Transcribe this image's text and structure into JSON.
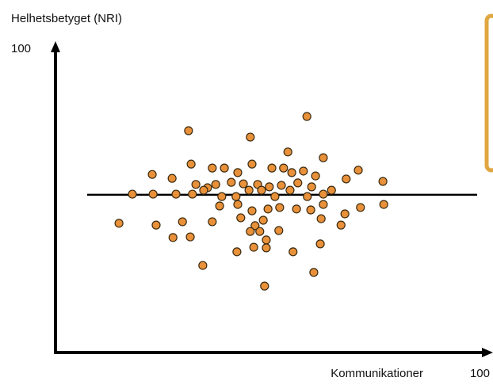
{
  "chart_data": {
    "type": "scatter",
    "y_axis_label": "Helhetsbetyget (NRI)",
    "x_axis_label": "Kommunikationer",
    "xlim": [
      0,
      100
    ],
    "ylim": [
      0,
      100
    ],
    "xticks": [
      100
    ],
    "yticks": [
      100
    ],
    "color": "#e8913a",
    "hline": 52,
    "x": [
      30.8,
      45.1,
      58.2,
      53.8,
      62.0,
      22.4,
      27.0,
      31.4,
      36.3,
      39.1,
      42.2,
      45.5,
      50.1,
      52.8,
      54.7,
      57.4,
      60.2,
      67.3,
      70.1,
      75.8,
      32.5,
      35.2,
      37.1,
      40.7,
      43.5,
      46.8,
      49.5,
      52.3,
      56.1,
      59.3,
      63.9,
      17.8,
      22.6,
      27.9,
      31.7,
      34.3,
      38.5,
      41.8,
      44.8,
      47.7,
      50.8,
      54.3,
      58.3,
      62.0,
      38.0,
      42.2,
      45.5,
      49.2,
      51.9,
      55.8,
      59.1,
      62.0,
      67.0,
      70.6,
      76.0,
      14.7,
      23.3,
      29.4,
      36.3,
      42.9,
      46.2,
      48.1,
      45.1,
      47.3,
      51.7,
      61.5,
      66.1,
      27.2,
      31.2,
      48.8,
      45.9,
      48.8,
      42.0,
      55.0,
      61.3,
      34.1,
      59.8,
      48.4
    ],
    "values": [
      73.1,
      71.0,
      77.8,
      66.1,
      64.2,
      58.7,
      57.4,
      62.1,
      60.8,
      60.8,
      59.3,
      62.1,
      60.8,
      60.8,
      59.3,
      59.8,
      58.2,
      57.2,
      60.1,
      56.4,
      55.4,
      54.3,
      55.4,
      56.1,
      55.6,
      55.4,
      54.6,
      55.1,
      55.9,
      54.6,
      53.5,
      52.2,
      52.2,
      52.2,
      52.2,
      53.5,
      51.4,
      51.4,
      53.5,
      53.5,
      51.4,
      53.5,
      51.4,
      52.2,
      48.3,
      48.8,
      46.7,
      47.3,
      47.8,
      47.3,
      47.0,
      48.8,
      45.7,
      47.8,
      48.8,
      42.6,
      42.0,
      43.1,
      43.1,
      44.4,
      41.8,
      43.6,
      39.9,
      39.9,
      40.2,
      44.1,
      42.0,
      37.9,
      38.1,
      37.1,
      34.7,
      34.5,
      33.2,
      33.2,
      35.8,
      28.7,
      26.4,
      21.9
    ]
  }
}
